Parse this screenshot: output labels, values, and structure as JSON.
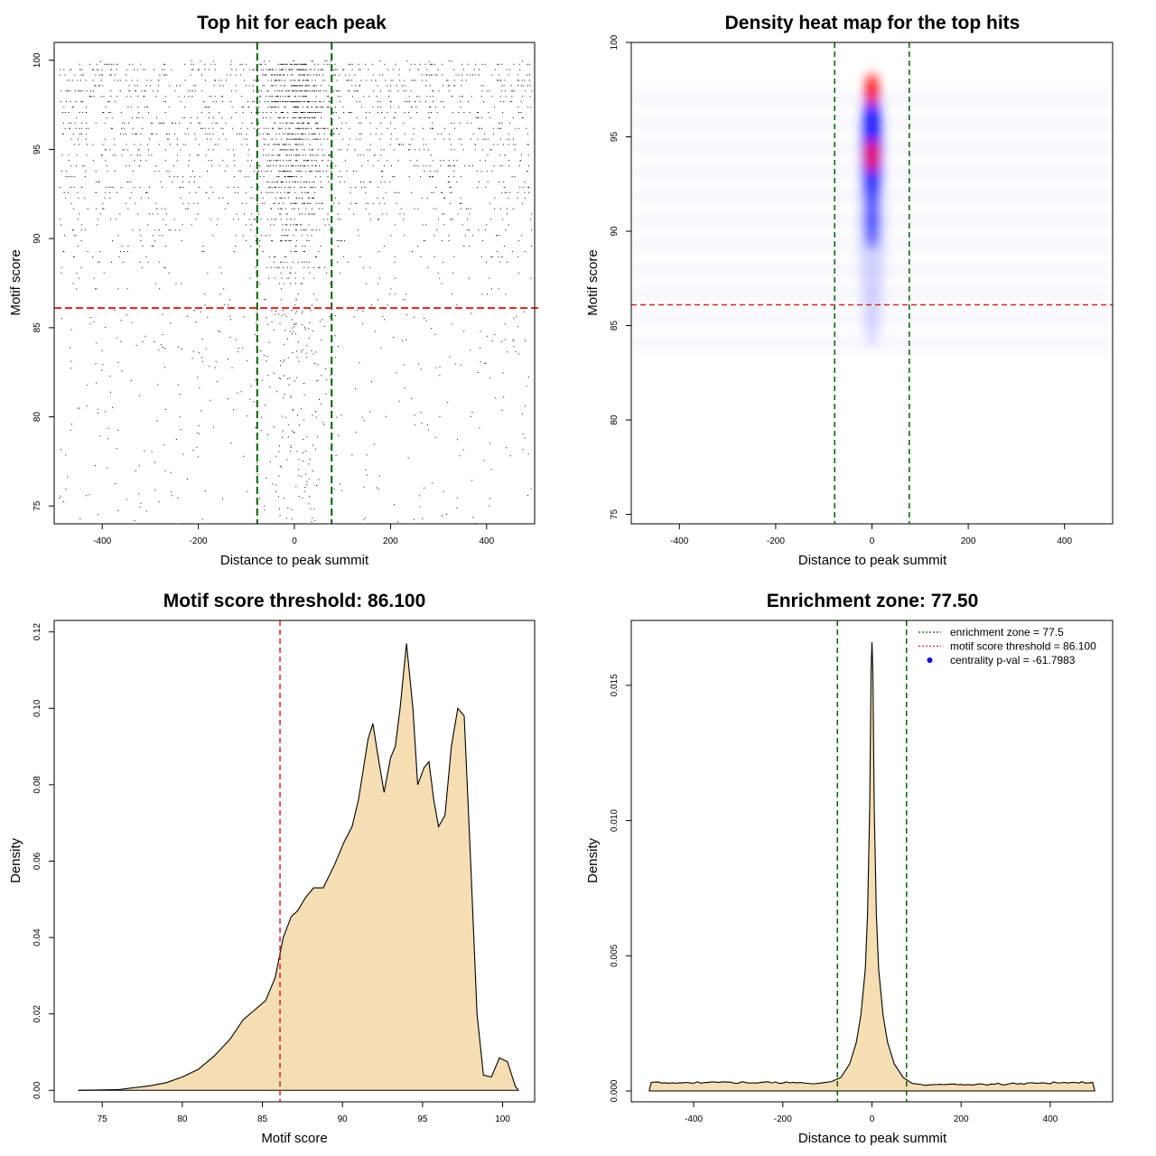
{
  "colors": {
    "points": "#000000",
    "enrichment_line": "#006400",
    "threshold_line": "#dd2222",
    "density_fill": "#f5deb3",
    "heat_low": "#ffffff",
    "heat_mid": "#0000ff",
    "heat_high": "#ff0000",
    "pval_point": "#0000ff"
  },
  "chart_data": [
    {
      "type": "scatter",
      "title": "Top hit for each peak",
      "xlabel": "Distance to peak summit",
      "ylabel": "Motif score",
      "xlim": [
        -500,
        500
      ],
      "ylim": [
        74,
        101
      ],
      "x_ticks": [
        "-400",
        "-200",
        "0",
        "200",
        "400"
      ],
      "y_ticks": [
        "75",
        "80",
        "85",
        "90",
        "95",
        "100"
      ],
      "vlines": [
        -77.5,
        77.5
      ],
      "hline": 86.1,
      "description_of_points": "dense cloud of points between x -490 and 495, scores 74-100, concentrated near x=0 and scores 86-98"
    },
    {
      "type": "heatmap",
      "title": "Density heat map for the top hits",
      "xlabel": "Distance to peak summit",
      "ylabel": "Motif score",
      "xlim": [
        -500,
        500
      ],
      "ylim": [
        74.5,
        100
      ],
      "x_ticks": [
        "-400",
        "-200",
        "0",
        "200",
        "400"
      ],
      "y_ticks": [
        "75",
        "80",
        "85",
        "90",
        "95",
        "100"
      ],
      "vlines": [
        -77.5,
        77.5
      ],
      "hline": 86.1,
      "hotspots": [
        {
          "x": 0,
          "y": 97.5,
          "level": "high"
        },
        {
          "x": 0,
          "y": 94.0,
          "level": "high"
        },
        {
          "x": 0,
          "y": 92.0,
          "level": "mid"
        }
      ]
    },
    {
      "type": "area",
      "title": "Motif score threshold: 86.100",
      "xlabel": "Motif score",
      "ylabel": "Density",
      "xlim": [
        72,
        102
      ],
      "ylim": [
        -0.003,
        0.123
      ],
      "x_ticks": [
        "75",
        "80",
        "85",
        "90",
        "95",
        "100"
      ],
      "y_ticks": [
        "0.00",
        "0.02",
        "0.04",
        "0.06",
        "0.08",
        "0.10",
        "0.12"
      ],
      "vline": 86.1,
      "x": [
        73.5,
        76,
        78,
        79,
        80,
        81,
        82,
        83,
        83.8,
        84.5,
        85.2,
        85.8,
        86.3,
        86.8,
        87.2,
        87.7,
        88.2,
        88.8,
        89.5,
        90.1,
        90.6,
        91.0,
        91.6,
        91.9,
        92.2,
        92.6,
        93.0,
        93.3,
        93.6,
        94.0,
        94.4,
        94.7,
        95.1,
        95.4,
        95.7,
        96.0,
        96.4,
        96.8,
        97.2,
        97.6,
        98.0,
        98.4,
        98.8,
        99.3,
        99.8,
        100.3,
        100.8,
        101.0
      ],
      "y": [
        0.0,
        0.0002,
        0.0012,
        0.002,
        0.0035,
        0.0055,
        0.009,
        0.0135,
        0.0185,
        0.021,
        0.0235,
        0.0295,
        0.04,
        0.0455,
        0.047,
        0.0505,
        0.053,
        0.053,
        0.059,
        0.065,
        0.069,
        0.076,
        0.092,
        0.096,
        0.088,
        0.078,
        0.087,
        0.09,
        0.1,
        0.117,
        0.1,
        0.08,
        0.0845,
        0.086,
        0.076,
        0.069,
        0.072,
        0.09,
        0.1,
        0.098,
        0.06,
        0.02,
        0.004,
        0.0035,
        0.0085,
        0.0075,
        0.001,
        0.0
      ]
    },
    {
      "type": "area",
      "title": "Enrichment zone: 77.50",
      "xlabel": "Distance to peak summit",
      "ylabel": "Density",
      "xlim": [
        -540,
        540
      ],
      "ylim": [
        -0.0004,
        0.0174
      ],
      "x_ticks": [
        "-400",
        "-200",
        "0",
        "200",
        "400"
      ],
      "y_ticks": [
        "0.000",
        "0.005",
        "0.010",
        "0.015"
      ],
      "vlines": [
        -77.5,
        77.5
      ],
      "x": [
        -500,
        -495,
        -400,
        -300,
        -200,
        -120,
        -90,
        -70,
        -50,
        -35,
        -25,
        -15,
        -10,
        -5,
        -2,
        0,
        2,
        5,
        10,
        15,
        25,
        35,
        50,
        70,
        90,
        120,
        200,
        300,
        400,
        495,
        500
      ],
      "y": [
        0.0,
        0.0003,
        0.00032,
        0.00031,
        0.00031,
        0.00028,
        0.00035,
        0.0005,
        0.001,
        0.0018,
        0.0028,
        0.0045,
        0.0065,
        0.0105,
        0.0155,
        0.0166,
        0.0155,
        0.0105,
        0.0065,
        0.0045,
        0.0028,
        0.0018,
        0.001,
        0.0005,
        0.00028,
        0.00022,
        0.00024,
        0.00026,
        0.0003,
        0.00032,
        0.0
      ],
      "legend": [
        {
          "label": "enrichment zone = 77.5",
          "style": "dotted-green"
        },
        {
          "label": "motif score threshold = 86.100",
          "style": "dotted-red"
        },
        {
          "label": "centrality p-val = -61.7983",
          "style": "blue-point"
        }
      ],
      "legend_position": "top-right"
    }
  ]
}
